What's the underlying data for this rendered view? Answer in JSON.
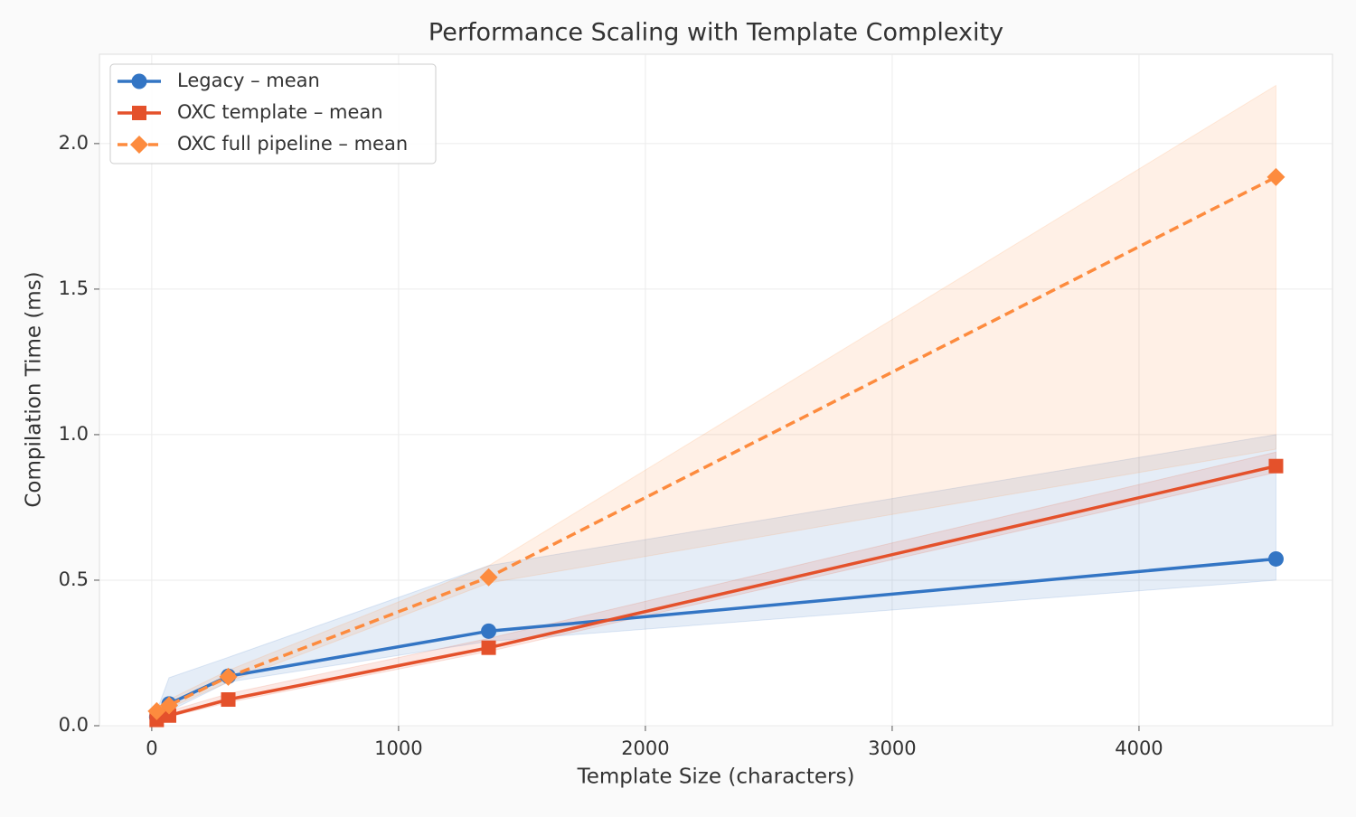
{
  "chart_data": {
    "type": "line",
    "title": "Performance Scaling with Template Complexity",
    "x_label": "Template Size (characters)",
    "y_label": "Compilation Time (ms)",
    "x": [
      20,
      70,
      310,
      1365,
      4555
    ],
    "series": [
      {
        "name": "Legacy – mean",
        "color": "#3375c4",
        "marker": "circle",
        "dashed": false,
        "values": [
          0.03,
          0.075,
          0.17,
          0.325,
          0.573
        ],
        "lower": [
          0.02,
          0.05,
          0.15,
          0.29,
          0.5
        ],
        "upper": [
          0.05,
          0.165,
          0.235,
          0.55,
          1.0
        ]
      },
      {
        "name": "OXC template – mean",
        "color": "#e4512b",
        "marker": "square",
        "dashed": false,
        "values": [
          0.02,
          0.035,
          0.09,
          0.268,
          0.892
        ],
        "lower": [
          0.015,
          0.03,
          0.08,
          0.255,
          0.87
        ],
        "upper": [
          0.03,
          0.05,
          0.11,
          0.3,
          0.94
        ]
      },
      {
        "name": "OXC full pipeline – mean",
        "color": "#fd8b3e",
        "marker": "diamond",
        "dashed": true,
        "values": [
          0.05,
          0.07,
          0.168,
          0.51,
          1.885
        ],
        "lower": [
          0.04,
          0.06,
          0.15,
          0.49,
          0.95
        ],
        "upper": [
          0.06,
          0.09,
          0.19,
          0.55,
          2.2
        ]
      }
    ],
    "xlim": [
      -212,
      4784
    ],
    "ylim": [
      0,
      2.307
    ],
    "xticks": [
      0,
      1000,
      2000,
      3000,
      4000
    ],
    "yticks": [
      {
        "value": 0,
        "label": "0.0"
      },
      0.5,
      {
        "value": 1,
        "label": "1.0"
      },
      1.5,
      {
        "value": 2,
        "label": "2.0"
      }
    ],
    "grid": true,
    "legend": "upper-left"
  }
}
